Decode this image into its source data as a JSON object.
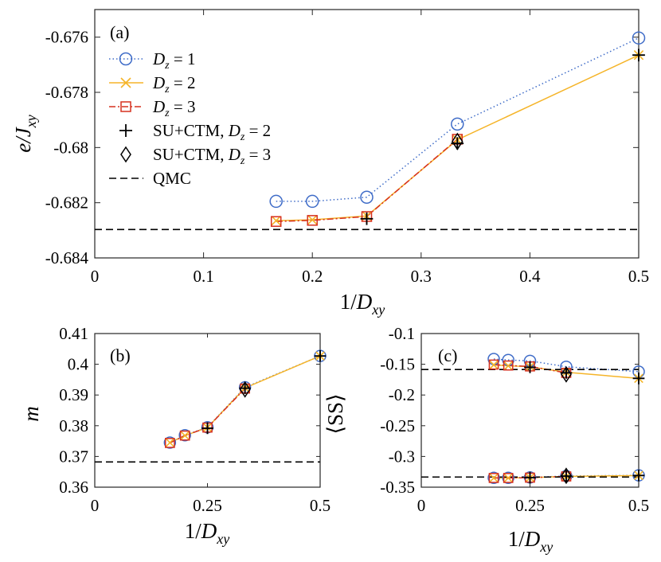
{
  "colors": {
    "dz1": "#3f6cc8",
    "dz2": "#f5b428",
    "dz3": "#d6301f",
    "cross": "#000000",
    "diamond": "#000000",
    "qmc": "#000000"
  },
  "chart_data": [
    {
      "panel_label": "(a)",
      "type": "line",
      "xlabel": "1/D_xy",
      "ylabel": "e/J_xy",
      "xlim": [
        0,
        0.5
      ],
      "ylim": [
        -0.684,
        -0.675
      ],
      "xticks": [
        "0",
        "0.1",
        "0.2",
        "0.3",
        "0.4",
        "0.5"
      ],
      "yticks": [
        "-0.684",
        "-0.682",
        "-0.68",
        "-0.678",
        "-0.676"
      ],
      "legend_position": "top-left",
      "series": [
        {
          "name": "D_z = 1",
          "style": "dotted-circle",
          "x": [
            0.1667,
            0.2,
            0.25,
            0.3333,
            0.5
          ],
          "y": [
            -0.68195,
            -0.68195,
            -0.6818,
            -0.67915,
            -0.67603
          ]
        },
        {
          "name": "D_z = 2",
          "style": "solid-x",
          "x": [
            0.1667,
            0.2,
            0.25,
            0.3333,
            0.5
          ],
          "y": [
            -0.68265,
            -0.68262,
            -0.68248,
            -0.67972,
            -0.67665
          ]
        },
        {
          "name": "D_z = 3",
          "style": "dashdot-square",
          "x": [
            0.1667,
            0.2,
            0.25,
            0.3333
          ],
          "y": [
            -0.68268,
            -0.68264,
            -0.6825,
            -0.6797
          ]
        },
        {
          "name": "SU+CTM, D_z = 2",
          "style": "plus",
          "x": [
            0.25,
            0.3333,
            0.5
          ],
          "y": [
            -0.68258,
            -0.67985,
            -0.67665
          ]
        },
        {
          "name": "SU+CTM, D_z = 3",
          "style": "diamond",
          "x": [
            0.3333
          ],
          "y": [
            -0.67978
          ]
        },
        {
          "name": "QMC",
          "style": "dashed-hline",
          "y": -0.68297
        }
      ]
    },
    {
      "panel_label": "(b)",
      "type": "line",
      "xlabel": "1/D_xy",
      "ylabel": "m",
      "xlim": [
        0,
        0.5
      ],
      "ylim": [
        0.36,
        0.41
      ],
      "xticks": [
        "0",
        "0.25",
        "0.5"
      ],
      "yticks": [
        "0.36",
        "0.37",
        "0.38",
        "0.39",
        "0.4",
        "0.41"
      ],
      "series": [
        {
          "style": "dotted-circle",
          "x": [
            0.1667,
            0.2,
            0.25,
            0.3333,
            0.5
          ],
          "y": [
            0.3745,
            0.3769,
            0.3795,
            0.3925,
            0.4027
          ]
        },
        {
          "style": "solid-x",
          "x": [
            0.1667,
            0.2,
            0.25,
            0.3333,
            0.5
          ],
          "y": [
            0.3745,
            0.3768,
            0.3794,
            0.3923,
            0.4027
          ]
        },
        {
          "style": "dashdot-square",
          "x": [
            0.1667,
            0.2,
            0.25,
            0.3333
          ],
          "y": [
            0.3744,
            0.3768,
            0.3794,
            0.3921
          ]
        },
        {
          "style": "plus",
          "x": [
            0.25,
            0.3333,
            0.5
          ],
          "y": [
            0.3792,
            0.3922,
            0.4027
          ]
        },
        {
          "style": "diamond",
          "x": [
            0.3333
          ],
          "y": [
            0.3918
          ]
        },
        {
          "style": "dashed-hline",
          "y": 0.3682
        }
      ]
    },
    {
      "panel_label": "(c)",
      "type": "line",
      "xlabel": "1/D_xy",
      "ylabel": "⟨SS⟩",
      "xlim": [
        0,
        0.5
      ],
      "ylim": [
        -0.35,
        -0.1
      ],
      "xticks": [
        "0",
        "0.25",
        "0.5"
      ],
      "yticks": [
        "-0.35",
        "-0.3",
        "-0.25",
        "-0.2",
        "-0.15",
        "-0.1"
      ],
      "series": [
        {
          "style": "dotted-circle",
          "x": [
            0.1667,
            0.2,
            0.25,
            0.3333,
            0.5
          ],
          "y": [
            -0.1415,
            -0.143,
            -0.1445,
            -0.154,
            -0.162
          ]
        },
        {
          "style": "solid-x",
          "x": [
            0.1667,
            0.2,
            0.25,
            0.3333,
            0.5
          ],
          "y": [
            -0.151,
            -0.1525,
            -0.154,
            -0.163,
            -0.173
          ]
        },
        {
          "style": "dashdot-square",
          "x": [
            0.1667,
            0.2,
            0.25,
            0.3333
          ],
          "y": [
            -0.1505,
            -0.152,
            -0.1535,
            -0.164
          ]
        },
        {
          "style": "plus",
          "x": [
            0.25,
            0.3333,
            0.5
          ],
          "y": [
            -0.155,
            -0.164,
            -0.173
          ]
        },
        {
          "style": "diamond",
          "x": [
            0.3333
          ],
          "y": [
            -0.1665
          ]
        },
        {
          "style": "dashed-hline",
          "y": -0.1585
        },
        {
          "style": "dotted-circle",
          "x": [
            0.1667,
            0.2,
            0.25,
            0.3333,
            0.5
          ],
          "y": [
            -0.3348,
            -0.3348,
            -0.3342,
            -0.3318,
            -0.3308
          ]
        },
        {
          "style": "solid-x",
          "x": [
            0.1667,
            0.2,
            0.25,
            0.3333,
            0.5
          ],
          "y": [
            -0.335,
            -0.335,
            -0.3345,
            -0.3325,
            -0.331
          ]
        },
        {
          "style": "dashdot-square",
          "x": [
            0.1667,
            0.2,
            0.25,
            0.3333
          ],
          "y": [
            -0.335,
            -0.335,
            -0.3345,
            -0.3325
          ]
        },
        {
          "style": "plus",
          "x": [
            0.25,
            0.3333,
            0.5
          ],
          "y": [
            -0.3345,
            -0.332,
            -0.331
          ]
        },
        {
          "style": "diamond",
          "x": [
            0.3333
          ],
          "y": [
            -0.3315
          ]
        },
        {
          "style": "dashed-hline",
          "y": -0.3335
        }
      ]
    }
  ]
}
